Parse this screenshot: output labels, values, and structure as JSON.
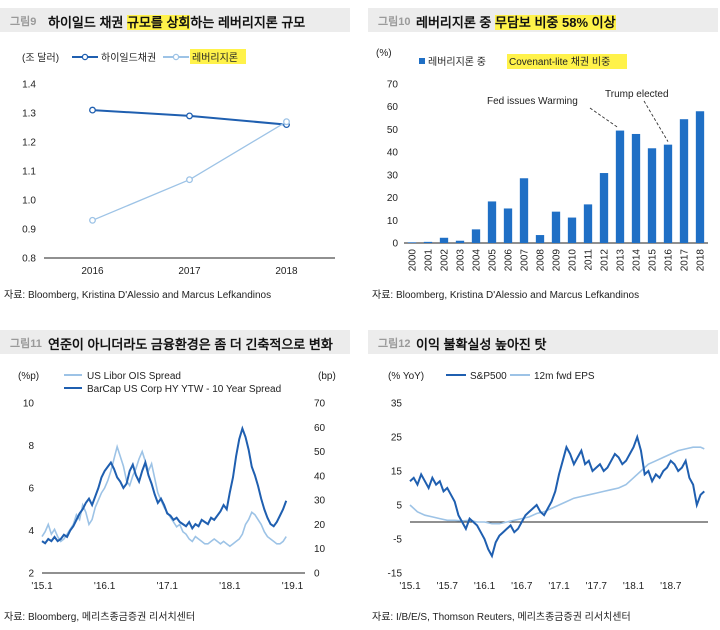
{
  "panels": [
    {
      "fig": "그림9",
      "title_parts": [
        {
          "text": "하이일드 채권 ",
          "hl": false
        },
        {
          "text": "규모를 상회",
          "hl": true
        },
        {
          "text": "하는 레버리지론 규모",
          "hl": false
        }
      ],
      "source": "자료: Bloomberg, Kristina D'Alessio and Marcus Lefkandinos"
    },
    {
      "fig": "그림10",
      "title_parts": [
        {
          "text": "레버리지론 중 ",
          "hl": false
        },
        {
          "text": "무담보 비중 58% 이상",
          "hl": true
        }
      ],
      "source": "자료: Bloomberg, Kristina D'Alessio and Marcus Lefkandinos"
    },
    {
      "fig": "그림11",
      "title_parts": [
        {
          "text": "연준이 아니더라도 금융환경은 좀 더 긴축적으로 변화",
          "hl": false
        }
      ],
      "source": "자료: Bloomberg, 메리츠종금증권 리서치센터"
    },
    {
      "fig": "그림12",
      "title_parts": [
        {
          "text": "이익 불확실성 높아진 탓",
          "hl": false
        }
      ],
      "source": "자료: I/B/E/S, Thomson Reuters, 메리츠종금증권 리서치센터"
    }
  ],
  "colors": {
    "dark": "#1f5fb0",
    "light": "#9dc3e6",
    "bar": "#1f6fc5",
    "highlight": "#fff24a"
  },
  "chart_data": [
    {
      "type": "line",
      "unit": "(조 달러)",
      "categories": [
        "2016",
        "2017",
        "2018"
      ],
      "series": [
        {
          "name": "하이일드채권",
          "values": [
            1.31,
            1.29,
            1.26
          ],
          "color": "#1f5fb0"
        },
        {
          "name": "레버리지론",
          "values": [
            0.93,
            1.07,
            1.27
          ],
          "color": "#9dc3e6",
          "highlight": true
        }
      ],
      "ylim": [
        0.8,
        1.4
      ],
      "yticks": [
        "0.8",
        "0.9",
        "1.0",
        "1.1",
        "1.2",
        "1.3",
        "1.4"
      ],
      "legend": "top-left"
    },
    {
      "type": "bar",
      "unit": "(%)",
      "categories": [
        "2000",
        "2001",
        "2002",
        "2003",
        "2004",
        "2005",
        "2006",
        "2007",
        "2008",
        "2009",
        "2010",
        "2011",
        "2012",
        "2013",
        "2014",
        "2015",
        "2016",
        "2017",
        "2018"
      ],
      "series": [
        {
          "name": "레버리지론 중 Covenant-lite 채권 비중",
          "name_prefix": "레버리지론 중 ",
          "name_hl": "Covenant-lite 채권 비중",
          "values": [
            0.3,
            0.5,
            2.3,
            1.0,
            6.0,
            18.3,
            15.2,
            28.5,
            3.5,
            13.8,
            11.2,
            17.0,
            30.8,
            49.5,
            48.0,
            41.7,
            43.3,
            54.5,
            58.0
          ]
        }
      ],
      "ylim": [
        0,
        70
      ],
      "yticks": [
        "0",
        "10",
        "20",
        "30",
        "40",
        "50",
        "60",
        "70"
      ],
      "annotations": [
        {
          "text": "Fed issues Warming",
          "x": "2013",
          "y": 49.5
        },
        {
          "text": "Trump elected",
          "x": "2016",
          "y": 43.3
        }
      ]
    },
    {
      "type": "line",
      "unit_left": "(%p)",
      "unit_right": "(bp)",
      "series": [
        {
          "name": "US Libor OIS Spread",
          "axis": "right",
          "color": "#9dc3e6",
          "x": [
            2015.0,
            2015.05,
            2015.1,
            2015.15,
            2015.2,
            2015.25,
            2015.3,
            2015.35,
            2015.4,
            2015.45,
            2015.5,
            2015.55,
            2015.6,
            2015.65,
            2015.7,
            2015.75,
            2015.8,
            2015.85,
            2015.9,
            2015.95,
            2016.0,
            2016.05,
            2016.1,
            2016.15,
            2016.2,
            2016.25,
            2016.3,
            2016.35,
            2016.4,
            2016.45,
            2016.5,
            2016.55,
            2016.6,
            2016.65,
            2016.7,
            2016.75,
            2016.8,
            2016.85,
            2016.9,
            2016.95,
            2017.0,
            2017.05,
            2017.1,
            2017.15,
            2017.2,
            2017.25,
            2017.3,
            2017.35,
            2017.4,
            2017.45,
            2017.5,
            2017.55,
            2017.6,
            2017.65,
            2017.7,
            2017.75,
            2017.8,
            2017.85,
            2017.9,
            2017.95,
            2018.0,
            2018.05,
            2018.1,
            2018.15,
            2018.2,
            2018.25,
            2018.3,
            2018.35,
            2018.4,
            2018.45,
            2018.5,
            2018.55,
            2018.6,
            2018.65,
            2018.7,
            2018.75,
            2018.8,
            2018.85,
            2018.9
          ],
          "values": [
            15,
            17,
            20,
            16,
            18,
            15,
            13,
            14,
            16,
            18,
            20,
            24,
            22,
            28,
            25,
            20,
            22,
            27,
            30,
            33,
            35,
            38,
            42,
            47,
            52,
            48,
            44,
            38,
            36,
            40,
            43,
            47,
            50,
            46,
            42,
            45,
            39,
            33,
            30,
            27,
            25,
            23,
            21,
            19,
            20,
            17,
            16,
            14,
            13,
            15,
            14,
            13,
            12,
            12,
            13,
            14,
            13,
            12,
            13,
            12,
            11,
            12,
            13,
            14,
            16,
            20,
            22,
            25,
            24,
            22,
            20,
            17,
            15,
            14,
            13,
            12,
            12,
            13,
            15
          ]
        },
        {
          "name": "BarCap US Corp HY YTW - 10 Year Spread",
          "axis": "left",
          "color": "#1f5fb0",
          "x": [
            2015.0,
            2015.05,
            2015.1,
            2015.15,
            2015.2,
            2015.25,
            2015.3,
            2015.35,
            2015.4,
            2015.45,
            2015.5,
            2015.55,
            2015.6,
            2015.65,
            2015.7,
            2015.75,
            2015.8,
            2015.85,
            2015.9,
            2015.95,
            2016.0,
            2016.05,
            2016.1,
            2016.15,
            2016.2,
            2016.25,
            2016.3,
            2016.35,
            2016.4,
            2016.45,
            2016.5,
            2016.55,
            2016.6,
            2016.65,
            2016.7,
            2016.75,
            2016.8,
            2016.85,
            2016.9,
            2016.95,
            2017.0,
            2017.05,
            2017.1,
            2017.15,
            2017.2,
            2017.25,
            2017.3,
            2017.35,
            2017.4,
            2017.45,
            2017.5,
            2017.55,
            2017.6,
            2017.65,
            2017.7,
            2017.75,
            2017.8,
            2017.85,
            2017.9,
            2017.95,
            2018.0,
            2018.05,
            2018.1,
            2018.15,
            2018.2,
            2018.25,
            2018.3,
            2018.35,
            2018.4,
            2018.45,
            2018.5,
            2018.55,
            2018.6,
            2018.65,
            2018.7,
            2018.75,
            2018.8,
            2018.85,
            2018.9
          ],
          "values": [
            3.5,
            3.4,
            3.6,
            3.5,
            3.7,
            3.5,
            3.6,
            3.8,
            3.7,
            4.0,
            4.2,
            4.5,
            4.8,
            5.0,
            5.3,
            5.5,
            5.2,
            5.6,
            6.0,
            6.5,
            6.8,
            7.0,
            7.2,
            6.9,
            6.5,
            6.3,
            6.0,
            6.2,
            6.8,
            7.1,
            6.6,
            6.3,
            6.8,
            7.2,
            6.6,
            6.2,
            5.7,
            5.3,
            5.5,
            5.2,
            4.8,
            4.7,
            4.5,
            4.6,
            4.4,
            4.3,
            4.2,
            4.4,
            4.1,
            4.3,
            4.2,
            4.5,
            4.4,
            4.3,
            4.6,
            4.5,
            4.7,
            4.9,
            5.2,
            5.0,
            5.8,
            6.5,
            7.5,
            8.3,
            8.8,
            8.4,
            7.8,
            7.0,
            6.6,
            6.1,
            5.5,
            5.0,
            4.6,
            4.3,
            4.2,
            4.4,
            4.7,
            5.0,
            5.4
          ]
        }
      ],
      "xticks": [
        "'15.1",
        "'16.1",
        "'17.1",
        "'18.1",
        "'19.1"
      ],
      "xtick_values": [
        2015.0,
        2016.0,
        2017.0,
        2018.0,
        2019.0
      ],
      "xlim": [
        2015.0,
        2019.2
      ],
      "ylim_left": [
        2,
        10
      ],
      "yticks_left": [
        "2",
        "4",
        "6",
        "8",
        "10"
      ],
      "ylim_right": [
        0,
        70
      ],
      "yticks_right": [
        "0",
        "10",
        "20",
        "30",
        "40",
        "50",
        "60",
        "70"
      ],
      "legend": "top-left"
    },
    {
      "type": "line",
      "unit": "(% YoY)",
      "series": [
        {
          "name": "S&P500",
          "color": "#1f5fb0",
          "x": [
            2015.0,
            2015.05,
            2015.1,
            2015.15,
            2015.2,
            2015.25,
            2015.3,
            2015.35,
            2015.4,
            2015.45,
            2015.5,
            2015.55,
            2015.6,
            2015.65,
            2015.7,
            2015.75,
            2015.8,
            2015.85,
            2015.9,
            2015.95,
            2016.0,
            2016.05,
            2016.1,
            2016.15,
            2016.2,
            2016.25,
            2016.3,
            2016.35,
            2016.4,
            2016.45,
            2016.5,
            2016.55,
            2016.6,
            2016.65,
            2016.7,
            2016.75,
            2016.8,
            2016.85,
            2016.9,
            2016.95,
            2017.0,
            2017.05,
            2017.1,
            2017.15,
            2017.2,
            2017.25,
            2017.3,
            2017.35,
            2017.4,
            2017.45,
            2017.5,
            2017.55,
            2017.6,
            2017.65,
            2017.7,
            2017.75,
            2017.8,
            2017.85,
            2017.9,
            2017.95,
            2018.0,
            2018.05,
            2018.1,
            2018.15,
            2018.2,
            2018.25,
            2018.3,
            2018.35,
            2018.4,
            2018.45,
            2018.5,
            2018.55,
            2018.6,
            2018.65,
            2018.7,
            2018.75,
            2018.8,
            2018.85,
            2018.9,
            2018.95
          ],
          "values": [
            12,
            13,
            11,
            14,
            12,
            10,
            13,
            11,
            12,
            9,
            10,
            8,
            6,
            2,
            0,
            -2,
            1,
            0,
            -1,
            -3,
            -5,
            -8,
            -10,
            -6,
            -4,
            -3,
            -2,
            -1,
            -3,
            -2,
            0,
            2,
            3,
            4,
            5,
            3,
            2,
            4,
            6,
            9,
            14,
            18,
            22,
            20,
            17,
            19,
            21,
            17,
            18,
            15,
            16,
            17,
            15,
            16,
            18,
            20,
            19,
            17,
            18,
            20,
            22,
            25,
            21,
            14,
            15,
            12,
            14,
            13,
            15,
            16,
            18,
            17,
            15,
            16,
            18,
            13,
            11,
            5,
            8,
            9
          ]
        },
        {
          "name": "12m fwd EPS",
          "color": "#9dc3e6",
          "x": [
            2015.0,
            2015.1,
            2015.2,
            2015.3,
            2015.4,
            2015.5,
            2015.6,
            2015.7,
            2015.8,
            2015.9,
            2016.0,
            2016.1,
            2016.2,
            2016.3,
            2016.4,
            2016.5,
            2016.6,
            2016.7,
            2016.8,
            2016.9,
            2017.0,
            2017.1,
            2017.2,
            2017.3,
            2017.4,
            2017.5,
            2017.6,
            2017.7,
            2017.8,
            2017.9,
            2018.0,
            2018.1,
            2018.2,
            2018.3,
            2018.4,
            2018.5,
            2018.6,
            2018.7,
            2018.8,
            2018.9,
            2018.95
          ],
          "values": [
            5,
            3,
            2,
            1.5,
            1,
            0.5,
            0.5,
            0.3,
            0.5,
            0,
            0,
            -0.5,
            -0.5,
            0,
            0.5,
            1,
            1.5,
            2.5,
            3,
            4,
            5,
            6,
            7,
            7.5,
            8,
            8.5,
            9,
            9.5,
            10,
            11,
            13,
            15,
            17,
            18,
            19,
            20,
            21,
            21.5,
            22,
            22,
            21.5
          ]
        }
      ],
      "xticks": [
        "'15.1",
        "'15.7",
        "'16.1",
        "'16.7",
        "'17.1",
        "'17.7",
        "'18.1",
        "'18.7"
      ],
      "xtick_values": [
        2015.0,
        2015.5,
        2016.0,
        2016.5,
        2017.0,
        2017.5,
        2018.0,
        2018.5
      ],
      "xlim": [
        2015.0,
        2019.0
      ],
      "ylim": [
        -15,
        35
      ],
      "yticks": [
        "-15",
        "-5",
        "5",
        "15",
        "25",
        "35"
      ],
      "legend": "top"
    }
  ]
}
